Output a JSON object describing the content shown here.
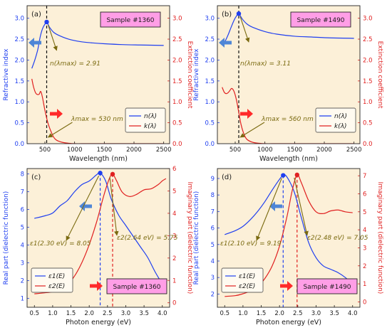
{
  "colors": {
    "panel_bg": "#fcf0d8",
    "blue": "#1f3ff0",
    "red": "#e02020",
    "sample_fill": "#ff9ee6",
    "arrow_blue": "#4f86d6",
    "arrow_red": "#ff2a2a",
    "annotation": "#7a6a10",
    "text": "#1a1a1a"
  },
  "chart_data": [
    {
      "type": "line",
      "panel_label": "(a)",
      "sample": "Sample #1360",
      "xlabel": "Wavelength (nm)",
      "ylabel_left": "Refractive index",
      "ylabel_right": "Extinction coefficient",
      "xlim": [
        200,
        2600
      ],
      "ylim_left": [
        0,
        3.3
      ],
      "ylim_right": [
        0,
        3.3
      ],
      "xticks": [
        "500",
        "1000",
        "1500",
        "2000",
        "2500"
      ],
      "yticks_left": [
        "0.0",
        "0.5",
        "1.0",
        "1.5",
        "2.0",
        "2.5",
        "3.0"
      ],
      "yticks_right": [
        "0.0",
        "0.5",
        "1.0",
        "1.5",
        "2.0",
        "2.5",
        "3.0"
      ],
      "legend": [
        "n(λ)",
        "k(λ)"
      ],
      "legend_position": "lower-right",
      "annotation_n": "n(λmax) = 2.91",
      "annotation_lambda": "λmax = 530 nm",
      "vline_x": 530,
      "peak": [
        530,
        2.91
      ],
      "series": [
        {
          "name": "n(λ)",
          "axis": "left",
          "x": [
            280,
            330,
            380,
            420,
            460,
            500,
            530,
            580,
            650,
            750,
            900,
            1100,
            1300,
            1500,
            1800,
            2100,
            2500
          ],
          "y": [
            1.8,
            2.0,
            2.25,
            2.55,
            2.75,
            2.86,
            2.91,
            2.78,
            2.66,
            2.58,
            2.5,
            2.44,
            2.41,
            2.39,
            2.37,
            2.36,
            2.35
          ]
        },
        {
          "name": "k(λ)",
          "axis": "right",
          "x": [
            280,
            310,
            350,
            400,
            430,
            460,
            500,
            550,
            600,
            650,
            700,
            800,
            900,
            1000,
            1200,
            1500,
            2000,
            2500
          ],
          "y": [
            1.55,
            1.35,
            1.2,
            1.18,
            1.25,
            1.1,
            0.8,
            0.5,
            0.3,
            0.15,
            0.08,
            0.03,
            0.01,
            0.0,
            0.0,
            0.0,
            0.0,
            0.0
          ]
        }
      ]
    },
    {
      "type": "line",
      "panel_label": "(b)",
      "sample": "Sample #1490",
      "xlabel": "Wavelength (nm)",
      "ylabel_left": "Refractive index",
      "ylabel_right": "Extinction coefficient",
      "xlim": [
        200,
        2600
      ],
      "ylim_left": [
        0,
        3.3
      ],
      "ylim_right": [
        0,
        3.3
      ],
      "xticks": [
        "500",
        "1000",
        "1500",
        "2000",
        "2500"
      ],
      "yticks_left": [
        "0.0",
        "0.5",
        "1.0",
        "1.5",
        "2.0",
        "2.5",
        "3.0"
      ],
      "yticks_right": [
        "0.0",
        "0.5",
        "1.0",
        "1.5",
        "2.0",
        "2.5",
        "3.0"
      ],
      "legend": [
        "n(λ)",
        "k(λ)"
      ],
      "legend_position": "lower-right",
      "annotation_n": "n(λmax) = 3.11",
      "annotation_lambda": "λmax = 560 nm",
      "vline_x": 560,
      "peak": [
        560,
        3.11
      ],
      "series": [
        {
          "name": "n(λ)",
          "axis": "left",
          "x": [
            280,
            330,
            380,
            430,
            480,
            520,
            560,
            620,
            700,
            800,
            1000,
            1200,
            1500,
            1800,
            2100,
            2500
          ],
          "y": [
            2.35,
            2.45,
            2.6,
            2.78,
            2.95,
            3.05,
            3.11,
            2.98,
            2.86,
            2.78,
            2.68,
            2.62,
            2.57,
            2.55,
            2.53,
            2.52
          ]
        },
        {
          "name": "k(λ)",
          "axis": "right",
          "x": [
            280,
            320,
            360,
            400,
            440,
            480,
            520,
            560,
            600,
            650,
            700,
            800,
            900,
            1000,
            1200,
            1500,
            2000,
            2500
          ],
          "y": [
            1.35,
            1.22,
            1.2,
            1.25,
            1.32,
            1.25,
            1.05,
            0.75,
            0.45,
            0.22,
            0.1,
            0.03,
            0.01,
            0.0,
            0.0,
            0.0,
            0.0,
            0.0
          ]
        }
      ]
    },
    {
      "type": "line",
      "panel_label": "(c)",
      "sample": "Sample #1360",
      "xlabel": "Photon energy (eV)",
      "ylabel_left": "Real part (dielectric function)",
      "ylabel_right": "Imaginary part (dielectric function)",
      "xlim": [
        0.3,
        4.2
      ],
      "ylim_left": [
        0.5,
        8.3
      ],
      "ylim_right": [
        -0.2,
        6.0
      ],
      "xticks": [
        "0.5",
        "1.0",
        "1.5",
        "2.0",
        "2.5",
        "3.0",
        "3.5",
        "4.0"
      ],
      "yticks_left": [
        "1",
        "2",
        "3",
        "4",
        "5",
        "6",
        "7",
        "8"
      ],
      "yticks_right": [
        "0",
        "1",
        "2",
        "3",
        "4",
        "5",
        "6"
      ],
      "legend": [
        "ε1(E)",
        "ε2(E)"
      ],
      "legend_position": "lower-left",
      "annotation_1": "ε1(2.30 eV) = 8.05",
      "annotation_2": "ε2(2.64 eV) = 5.75",
      "vline_blue": 2.3,
      "vline_red": 2.64,
      "peak_1": [
        2.3,
        8.05
      ],
      "peak_2": [
        2.64,
        5.75
      ],
      "series": [
        {
          "name": "ε1(E)",
          "axis": "left",
          "x": [
            0.5,
            0.8,
            1.0,
            1.2,
            1.4,
            1.6,
            1.8,
            2.0,
            2.2,
            2.3,
            2.45,
            2.6,
            2.8,
            3.0,
            3.2,
            3.4,
            3.6,
            3.8,
            4.0,
            4.1
          ],
          "y": [
            5.5,
            5.65,
            5.8,
            6.2,
            6.5,
            7.0,
            7.4,
            7.6,
            7.95,
            8.05,
            7.6,
            6.6,
            5.7,
            5.1,
            4.5,
            3.9,
            3.3,
            2.5,
            1.8,
            1.4
          ]
        },
        {
          "name": "ε2(E)",
          "axis": "right",
          "x": [
            0.5,
            0.8,
            1.0,
            1.1,
            1.2,
            1.4,
            1.6,
            1.8,
            2.0,
            2.2,
            2.4,
            2.55,
            2.64,
            2.75,
            2.9,
            3.1,
            3.3,
            3.5,
            3.7,
            3.9,
            4.0,
            4.1
          ],
          "y": [
            0.4,
            0.45,
            0.5,
            0.7,
            0.55,
            0.8,
            1.2,
            1.8,
            2.6,
            3.6,
            4.8,
            5.55,
            5.75,
            5.45,
            4.95,
            4.75,
            4.85,
            5.05,
            5.1,
            5.3,
            5.45,
            5.55
          ]
        }
      ]
    },
    {
      "type": "line",
      "panel_label": "(d)",
      "sample": "Sample #1490",
      "xlabel": "Photon energy (eV)",
      "ylabel_left": "Real part (dielectric function)",
      "ylabel_right": "Imaginary part (dielectric function)",
      "xlim": [
        0.3,
        4.2
      ],
      "ylim_left": [
        1.2,
        9.6
      ],
      "ylim_right": [
        -0.3,
        7.4
      ],
      "xticks": [
        "0.5",
        "1.0",
        "1.5",
        "2.0",
        "2.5",
        "3.0",
        "3.5",
        "4.0"
      ],
      "yticks_left": [
        "2",
        "3",
        "4",
        "5",
        "6",
        "7",
        "8",
        "9"
      ],
      "yticks_right": [
        "0",
        "1",
        "2",
        "3",
        "4",
        "5",
        "6",
        "7"
      ],
      "legend": [
        "ε1(E)",
        "ε2(E)"
      ],
      "legend_position": "lower-left",
      "annotation_1": "ε1(2.10 eV) = 9.19",
      "annotation_2": "ε2(2.48 eV) = 7.05",
      "vline_blue": 2.1,
      "vline_red": 2.48,
      "peak_1": [
        2.1,
        9.19
      ],
      "peak_2": [
        2.48,
        7.05
      ],
      "series": [
        {
          "name": "ε1(E)",
          "axis": "left",
          "x": [
            0.5,
            0.8,
            1.0,
            1.2,
            1.4,
            1.6,
            1.8,
            2.0,
            2.1,
            2.2,
            2.4,
            2.6,
            2.8,
            3.0,
            3.2,
            3.4,
            3.6,
            3.8,
            4.0
          ],
          "y": [
            5.6,
            5.85,
            6.1,
            6.5,
            7.0,
            7.6,
            8.3,
            8.95,
            9.19,
            9.1,
            8.2,
            6.6,
            5.1,
            4.2,
            3.7,
            3.5,
            3.3,
            3.0,
            2.6
          ]
        },
        {
          "name": "ε2(E)",
          "axis": "right",
          "x": [
            0.5,
            0.8,
            1.0,
            1.2,
            1.4,
            1.6,
            1.8,
            2.0,
            2.2,
            2.35,
            2.48,
            2.6,
            2.8,
            3.0,
            3.2,
            3.4,
            3.6,
            3.8,
            4.0
          ],
          "y": [
            0.3,
            0.35,
            0.45,
            0.6,
            0.85,
            1.3,
            2.0,
            3.1,
            4.7,
            6.2,
            7.05,
            6.6,
            5.6,
            5.0,
            4.9,
            5.05,
            5.1,
            5.0,
            4.95
          ]
        }
      ]
    }
  ]
}
